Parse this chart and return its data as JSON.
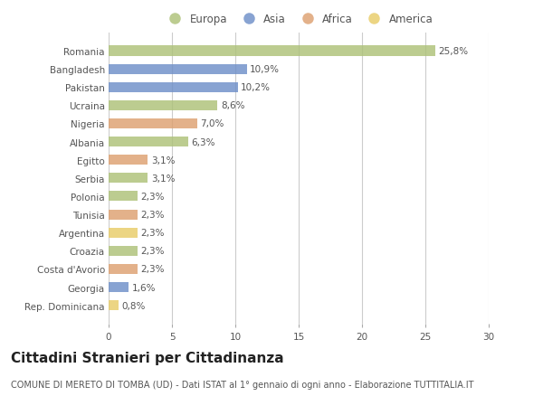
{
  "countries": [
    "Romania",
    "Bangladesh",
    "Pakistan",
    "Ucraina",
    "Nigeria",
    "Albania",
    "Egitto",
    "Serbia",
    "Polonia",
    "Tunisia",
    "Argentina",
    "Croazia",
    "Costa d'Avorio",
    "Georgia",
    "Rep. Dominicana"
  ],
  "values": [
    25.8,
    10.9,
    10.2,
    8.6,
    7.0,
    6.3,
    3.1,
    3.1,
    2.3,
    2.3,
    2.3,
    2.3,
    2.3,
    1.6,
    0.8
  ],
  "labels": [
    "25,8%",
    "10,9%",
    "10,2%",
    "8,6%",
    "7,0%",
    "6,3%",
    "3,1%",
    "3,1%",
    "2,3%",
    "2,3%",
    "2,3%",
    "2,3%",
    "2,3%",
    "1,6%",
    "0,8%"
  ],
  "continents": [
    "Europa",
    "Asia",
    "Asia",
    "Europa",
    "Africa",
    "Europa",
    "Africa",
    "Europa",
    "Europa",
    "Africa",
    "America",
    "Europa",
    "Africa",
    "Asia",
    "America"
  ],
  "continent_colors": {
    "Europa": "#adc178",
    "Asia": "#6e8fc8",
    "Africa": "#dda070",
    "America": "#e8cc68"
  },
  "legend_order": [
    "Europa",
    "Asia",
    "Africa",
    "America"
  ],
  "title": "Cittadini Stranieri per Cittadinanza",
  "subtitle": "COMUNE DI MERETO DI TOMBA (UD) - Dati ISTAT al 1° gennaio di ogni anno - Elaborazione TUTTITALIA.IT",
  "xlim": [
    0,
    30
  ],
  "xticks": [
    0,
    5,
    10,
    15,
    20,
    25,
    30
  ],
  "background_color": "#ffffff",
  "bar_height": 0.55,
  "title_fontsize": 11,
  "subtitle_fontsize": 7,
  "label_fontsize": 7.5,
  "tick_fontsize": 7.5,
  "legend_fontsize": 8.5
}
